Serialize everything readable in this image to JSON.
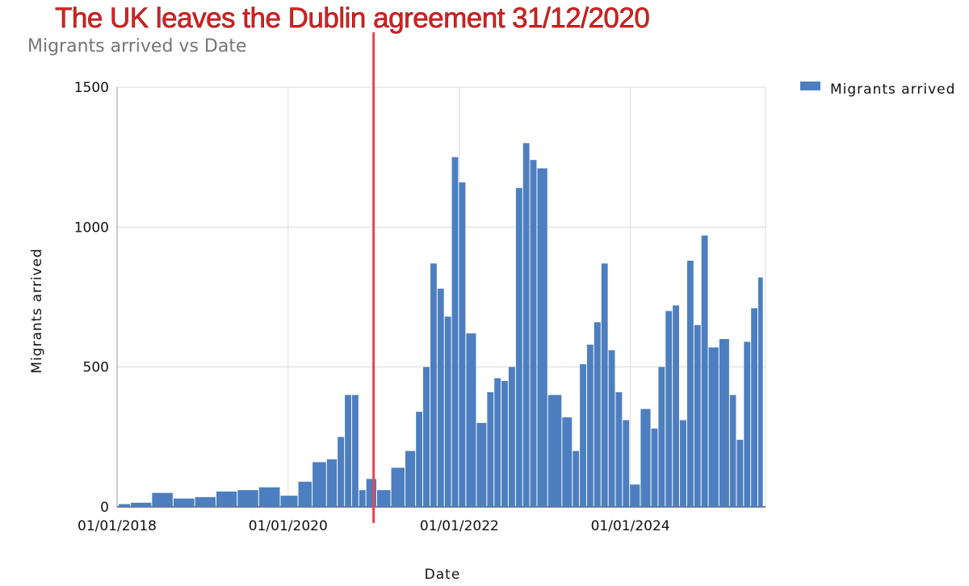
{
  "banner": "The UK leaves the Dublin agreement 31/12/2020",
  "colors": {
    "series": "#4d7fc0",
    "annotation_line": "#e8434f",
    "banner_text": "#e02020",
    "grid": "#d9d9d9"
  },
  "chart_data": {
    "type": "area",
    "title": "Migrants arrived vs Date",
    "xlabel": "Date",
    "ylabel": "Migrants arrived",
    "ylim": [
      0,
      1500
    ],
    "xlim": [
      "01/01/2018",
      "31/07/2025"
    ],
    "yticks": [
      "0",
      "500",
      "1000",
      "1500"
    ],
    "xticks": [
      "01/01/2018",
      "01/01/2020",
      "01/01/2022",
      "01/01/2024"
    ],
    "grid": true,
    "legend_position": "top-right",
    "annotation": {
      "date": "31/12/2020"
    },
    "series": [
      {
        "name": "Migrants arrived",
        "x": [
          "2018-01",
          "2018-04",
          "2018-07",
          "2018-10",
          "2019-01",
          "2019-04",
          "2019-07",
          "2019-10",
          "2020-01",
          "2020-03",
          "2020-05",
          "2020-07",
          "2020-08",
          "2020-09",
          "2020-10",
          "2020-11",
          "2020-12",
          "2021-02",
          "2021-04",
          "2021-06",
          "2021-07",
          "2021-08",
          "2021-09",
          "2021-10",
          "2021-11",
          "2021-12",
          "2022-01",
          "2022-02",
          "2022-04",
          "2022-05",
          "2022-06",
          "2022-07",
          "2022-08",
          "2022-09",
          "2022-10",
          "2022-11",
          "2022-12",
          "2023-02",
          "2023-04",
          "2023-05",
          "2023-06",
          "2023-07",
          "2023-08",
          "2023-09",
          "2023-10",
          "2023-11",
          "2023-12",
          "2024-01",
          "2024-03",
          "2024-04",
          "2024-05",
          "2024-06",
          "2024-07",
          "2024-08",
          "2024-09",
          "2024-10",
          "2024-11",
          "2024-12",
          "2025-02",
          "2025-03",
          "2025-04",
          "2025-05",
          "2025-06",
          "2025-07"
        ],
        "y": [
          10,
          15,
          50,
          30,
          35,
          55,
          60,
          70,
          40,
          90,
          160,
          170,
          250,
          400,
          400,
          60,
          100,
          60,
          140,
          200,
          340,
          500,
          870,
          780,
          680,
          1250,
          1160,
          620,
          300,
          410,
          460,
          450,
          500,
          1140,
          1300,
          1240,
          1210,
          400,
          320,
          200,
          510,
          580,
          660,
          870,
          560,
          410,
          310,
          80,
          350,
          280,
          500,
          700,
          720,
          310,
          880,
          650,
          970,
          570,
          600,
          400,
          240,
          590,
          710,
          820
        ]
      }
    ]
  }
}
